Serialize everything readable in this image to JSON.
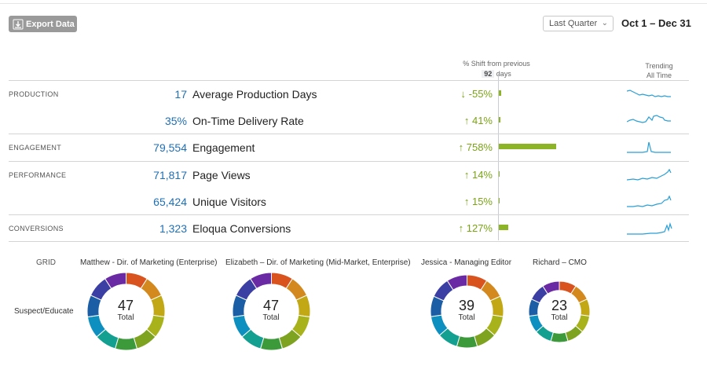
{
  "toolbar": {
    "export_label": "Export Data",
    "export_icon_text": "CSV",
    "range_select_value": "Last Quarter",
    "date_range": "Oct 1 – Dec 31"
  },
  "table": {
    "shift_header": "% Shift from previous",
    "shift_days": "92",
    "shift_days_unit": "days",
    "trending_header_1": "Trending",
    "trending_header_2": "All Time",
    "categories": [
      "PRODUCTION",
      "ENGAGEMENT",
      "PERFORMANCE",
      "CONVERSIONS"
    ],
    "rows": [
      {
        "value": "17",
        "metric": "Average Production Days",
        "shift": "↓ -55%",
        "shift_fraction": 0.04
      },
      {
        "value": "35%",
        "metric": "On-Time Delivery Rate",
        "shift": "↑ 41%",
        "shift_fraction": 0.03
      },
      {
        "value": "79,554",
        "metric": "Engagement",
        "shift": "↑ 758%",
        "shift_fraction": 1.0
      },
      {
        "value": "71,817",
        "metric": "Page Views",
        "shift": "↑ 14%",
        "shift_fraction": 0.01
      },
      {
        "value": "65,424",
        "metric": "Unique Visitors",
        "shift": "↑ 15%",
        "shift_fraction": 0.01
      },
      {
        "value": "1,323",
        "metric": "Eloqua Conversions",
        "shift": "↑ 127%",
        "shift_fraction": 0.17
      }
    ]
  },
  "grid": {
    "label": "GRID",
    "row_label": "Suspect/Educate",
    "total_label": "Total",
    "people": [
      {
        "name": "Matthew - Dir. of Marketing (Enterprise)",
        "total": "47"
      },
      {
        "name": "Elizabeth – Dir. of Marketing (Mid-Market, Enterprise)",
        "total": "47"
      },
      {
        "name": "Jessica - Managing Editor",
        "total": "39"
      },
      {
        "name": "Richard – CMO",
        "total": "23"
      }
    ]
  },
  "colors": {
    "accent_blue": "#1f6fb5",
    "shift_green": "#7aa315",
    "bar_green": "#8db327",
    "sparkline": "#2a9fd6",
    "donut_segments": [
      "#d9531e",
      "#d4891e",
      "#c2a814",
      "#a8b31c",
      "#7ea321",
      "#3c9a3a",
      "#13a090",
      "#0d8fbf",
      "#1c5ea6",
      "#3b3ea2",
      "#6a2aa3"
    ]
  }
}
